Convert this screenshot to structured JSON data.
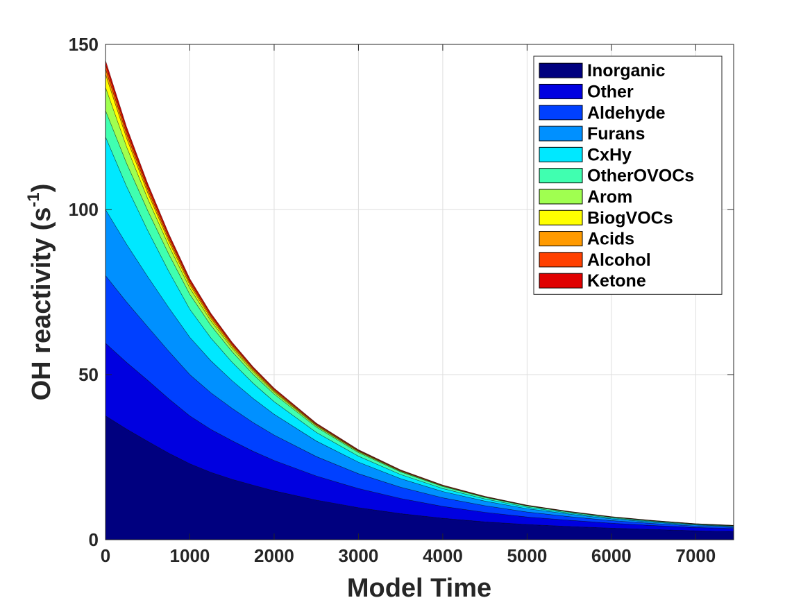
{
  "chart_data": {
    "type": "area",
    "stacked": true,
    "xlabel": "Model Time",
    "ylabel": "OH reactivity (s",
    "ylabel_sup": "-1",
    "ylabel_close": ")",
    "xlim": [
      0,
      7450
    ],
    "ylim": [
      0,
      150
    ],
    "xticks": [
      0,
      1000,
      2000,
      3000,
      4000,
      5000,
      6000,
      7000
    ],
    "yticks": [
      0,
      50,
      100,
      150
    ],
    "grid": true,
    "legend_position": "top-right",
    "x": [
      0,
      250,
      500,
      750,
      1000,
      1250,
      1500,
      1750,
      2000,
      2500,
      3000,
      3500,
      4000,
      4500,
      5000,
      5500,
      6000,
      6500,
      7000,
      7450
    ],
    "series": [
      {
        "name": "Inorganic",
        "color": "#00007f",
        "values": [
          37.5,
          33.5,
          29.8,
          26.2,
          23.0,
          20.4,
          18.3,
          16.5,
          14.8,
          12.0,
          9.7,
          7.9,
          6.5,
          5.4,
          4.6,
          4.0,
          3.5,
          3.1,
          2.7,
          2.5
        ]
      },
      {
        "name": "Other",
        "color": "#0000e0",
        "values": [
          22.0,
          20.2,
          18.5,
          16.5,
          14.5,
          13.0,
          11.7,
          10.3,
          9.2,
          7.3,
          5.8,
          4.6,
          3.6,
          2.9,
          2.3,
          1.9,
          1.5,
          1.2,
          1.0,
          0.9
        ]
      },
      {
        "name": "Aldehyde",
        "color": "#0040ff",
        "values": [
          20.5,
          18.3,
          16.2,
          14.4,
          12.5,
          11.1,
          9.8,
          8.7,
          7.7,
          5.9,
          4.5,
          3.4,
          2.6,
          2.0,
          1.5,
          1.1,
          0.8,
          0.6,
          0.45,
          0.35
        ]
      },
      {
        "name": "Furans",
        "color": "#0090ff",
        "values": [
          20.0,
          17.5,
          15.2,
          13.2,
          11.3,
          9.7,
          8.4,
          7.3,
          6.3,
          4.7,
          3.5,
          2.6,
          1.9,
          1.4,
          1.0,
          0.75,
          0.55,
          0.4,
          0.3,
          0.25
        ]
      },
      {
        "name": "CxHy",
        "color": "#00e8ff",
        "values": [
          22.0,
          17.5,
          14.0,
          11.0,
          8.5,
          6.9,
          5.6,
          4.6,
          3.8,
          2.6,
          1.8,
          1.25,
          0.9,
          0.65,
          0.45,
          0.33,
          0.25,
          0.19,
          0.15,
          0.12
        ]
      },
      {
        "name": "OtherOVOCs",
        "color": "#40ffb0",
        "values": [
          8.0,
          7.0,
          6.0,
          5.2,
          4.5,
          3.8,
          3.2,
          2.7,
          2.3,
          1.6,
          1.1,
          0.8,
          0.6,
          0.45,
          0.35,
          0.27,
          0.21,
          0.17,
          0.14,
          0.12
        ]
      },
      {
        "name": "Arom",
        "color": "#a0ff50",
        "values": [
          7.0,
          5.0,
          3.6,
          2.6,
          1.9,
          1.4,
          1.05,
          0.8,
          0.6,
          0.4,
          0.28,
          0.2,
          0.15,
          0.12,
          0.09,
          0.07,
          0.06,
          0.05,
          0.04,
          0.04
        ]
      },
      {
        "name": "BiogVOCs",
        "color": "#ffff00",
        "values": [
          4.0,
          2.6,
          1.8,
          1.3,
          0.95,
          0.7,
          0.52,
          0.4,
          0.31,
          0.2,
          0.14,
          0.1,
          0.08,
          0.06,
          0.05,
          0.04,
          0.03,
          0.03,
          0.02,
          0.02
        ]
      },
      {
        "name": "Acids",
        "color": "#ff9a00",
        "values": [
          1.6,
          1.3,
          1.05,
          0.85,
          0.7,
          0.57,
          0.47,
          0.39,
          0.32,
          0.22,
          0.16,
          0.11,
          0.08,
          0.06,
          0.05,
          0.04,
          0.03,
          0.03,
          0.02,
          0.02
        ]
      },
      {
        "name": "Alcohol",
        "color": "#ff4000",
        "values": [
          1.4,
          1.15,
          0.95,
          0.78,
          0.64,
          0.53,
          0.44,
          0.36,
          0.3,
          0.21,
          0.15,
          0.1,
          0.08,
          0.06,
          0.05,
          0.04,
          0.03,
          0.03,
          0.02,
          0.02
        ]
      },
      {
        "name": "Ketone",
        "color": "#e00000",
        "values": [
          1.2,
          1.0,
          0.85,
          0.7,
          0.58,
          0.48,
          0.4,
          0.33,
          0.28,
          0.2,
          0.14,
          0.1,
          0.07,
          0.05,
          0.04,
          0.03,
          0.03,
          0.02,
          0.02,
          0.02
        ]
      }
    ]
  }
}
